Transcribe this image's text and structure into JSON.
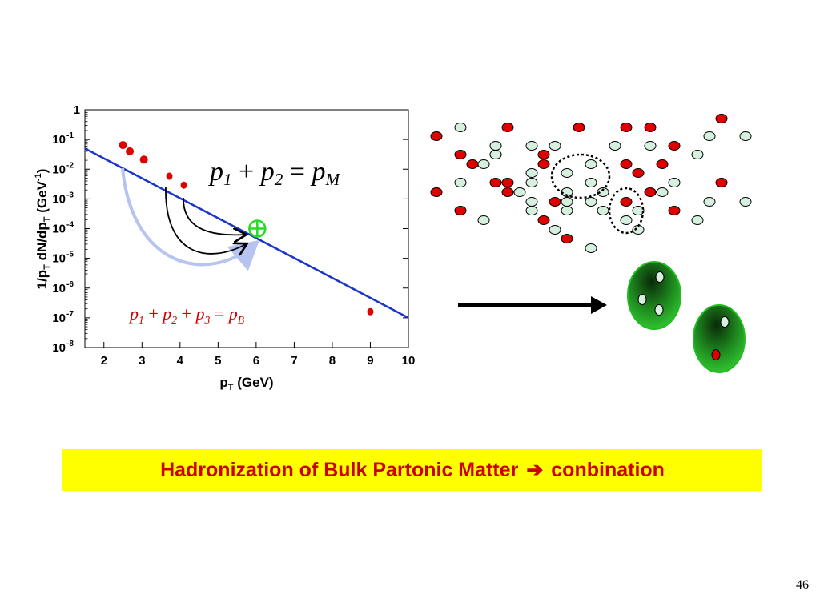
{
  "chart_data": {
    "type": "scatter",
    "xlabel": "p_T (GeV)",
    "ylabel": "1/p_T dN/dp_T (GeV^-1)",
    "xlim": [
      1.5,
      10
    ],
    "ylim": [
      1e-08,
      1
    ],
    "log_y": true,
    "x_ticks": [
      2,
      3,
      4,
      5,
      6,
      7,
      8,
      9,
      10
    ],
    "y_ticks": [
      {
        "value": 1e-08,
        "base": "10",
        "exp": "-8"
      },
      {
        "value": 1e-07,
        "base": "10",
        "exp": "-7"
      },
      {
        "value": 1e-06,
        "base": "10",
        "exp": "-6"
      },
      {
        "value": 1e-05,
        "base": "10",
        "exp": "-5"
      },
      {
        "value": 0.0001,
        "base": "10",
        "exp": "-4"
      },
      {
        "value": 0.001,
        "base": "10",
        "exp": "-3"
      },
      {
        "value": 0.01,
        "base": "10",
        "exp": "-2"
      },
      {
        "value": 0.1,
        "base": "10",
        "exp": "-1"
      },
      {
        "value": 1,
        "base": "1",
        "exp": ""
      }
    ],
    "line": {
      "x": [
        1.5,
        10
      ],
      "y": [
        0.05,
        1e-07
      ],
      "color": "#1a35c8"
    },
    "points": [
      {
        "x": 2.5,
        "y": 0.065
      },
      {
        "x": 2.68,
        "y": 0.04
      },
      {
        "x": 3.05,
        "y": 0.021
      },
      {
        "x": 3.72,
        "y": 0.0058
      },
      {
        "x": 4.1,
        "y": 0.0029
      },
      {
        "x": 9.0,
        "y": 1.6e-07
      }
    ],
    "combined_point": {
      "x": 6.03,
      "y": 0.0001
    },
    "equation_meson": "p1 + p2 = pM",
    "equation_baryon": "p1 + p2 + p3 = pB"
  },
  "colors": {
    "quark_red": "#e00000",
    "quark_light": "#d6f0e0",
    "hadron_green": "#22aa22",
    "line_blue": "#1a35c8",
    "banner_bg": "#ffff00",
    "banner_text": "#cc0000"
  },
  "banner": {
    "text_before": "Hadronization of Bulk Partonic Matter",
    "arrow_icon": "right-arrow-icon",
    "text_after": "conbination"
  },
  "page_number": "46"
}
